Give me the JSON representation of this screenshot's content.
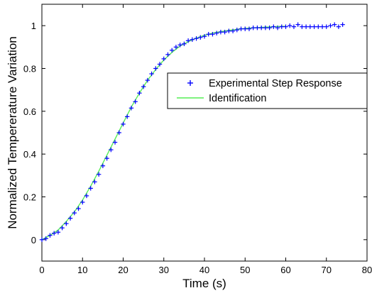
{
  "chart_data": {
    "type": "line",
    "title": "",
    "xlabel": "Time (s)",
    "ylabel": "Normalized Tempererature Variation",
    "xlim": [
      0,
      80
    ],
    "ylim": [
      -0.1,
      1.1
    ],
    "xticks": [
      "0",
      "10",
      "20",
      "30",
      "40",
      "50",
      "60",
      "70",
      "80"
    ],
    "yticks": [
      "0",
      "0.2",
      "0.4",
      "0.6",
      "0.8",
      "1"
    ],
    "grid": false,
    "legend_position": "upper-right",
    "series": [
      {
        "name": "Experimental Step Response",
        "style": "markers",
        "marker": "plus",
        "color": "#0000ff",
        "x": [
          0,
          1,
          2,
          3,
          4,
          5,
          6,
          7,
          8,
          9,
          10,
          11,
          12,
          13,
          14,
          15,
          16,
          17,
          18,
          19,
          20,
          21,
          22,
          23,
          24,
          25,
          26,
          27,
          28,
          29,
          30,
          31,
          32,
          33,
          34,
          35,
          36,
          37,
          38,
          39,
          40,
          41,
          42,
          43,
          44,
          45,
          46,
          47,
          48,
          49,
          50,
          51,
          52,
          53,
          54,
          55,
          56,
          57,
          58,
          59,
          60,
          61,
          62,
          63,
          64,
          65,
          66,
          67,
          68,
          69,
          70,
          71,
          72,
          73,
          74
        ],
        "y": [
          0.0,
          0.005,
          0.02,
          0.03,
          0.035,
          0.055,
          0.075,
          0.1,
          0.125,
          0.145,
          0.175,
          0.205,
          0.24,
          0.27,
          0.305,
          0.345,
          0.38,
          0.42,
          0.455,
          0.5,
          0.54,
          0.575,
          0.615,
          0.645,
          0.685,
          0.715,
          0.745,
          0.775,
          0.8,
          0.82,
          0.845,
          0.865,
          0.885,
          0.9,
          0.91,
          0.915,
          0.93,
          0.935,
          0.94,
          0.945,
          0.95,
          0.96,
          0.96,
          0.965,
          0.97,
          0.97,
          0.975,
          0.975,
          0.98,
          0.985,
          0.985,
          0.985,
          0.99,
          0.99,
          0.99,
          0.99,
          0.99,
          0.995,
          0.99,
          0.995,
          0.995,
          1.0,
          0.995,
          1.005,
          0.995,
          0.995,
          0.995,
          0.995,
          0.995,
          0.995,
          0.995,
          1.0,
          1.005,
          0.995,
          1.005
        ]
      },
      {
        "name": "Identification",
        "style": "line",
        "color": "#55ee55",
        "x": [
          0,
          2,
          4,
          6,
          8,
          10,
          12,
          14,
          16,
          18,
          20,
          22,
          24,
          26,
          28,
          30,
          32,
          34,
          36,
          38,
          40,
          42,
          44,
          46,
          48,
          50,
          52,
          54,
          56,
          58,
          60
        ],
        "y": [
          0.0,
          0.02,
          0.045,
          0.085,
          0.13,
          0.185,
          0.25,
          0.32,
          0.395,
          0.47,
          0.545,
          0.62,
          0.685,
          0.745,
          0.795,
          0.84,
          0.875,
          0.905,
          0.925,
          0.942,
          0.955,
          0.965,
          0.972,
          0.978,
          0.983,
          0.987,
          0.99,
          0.992,
          0.994,
          0.996,
          0.997
        ]
      }
    ]
  }
}
